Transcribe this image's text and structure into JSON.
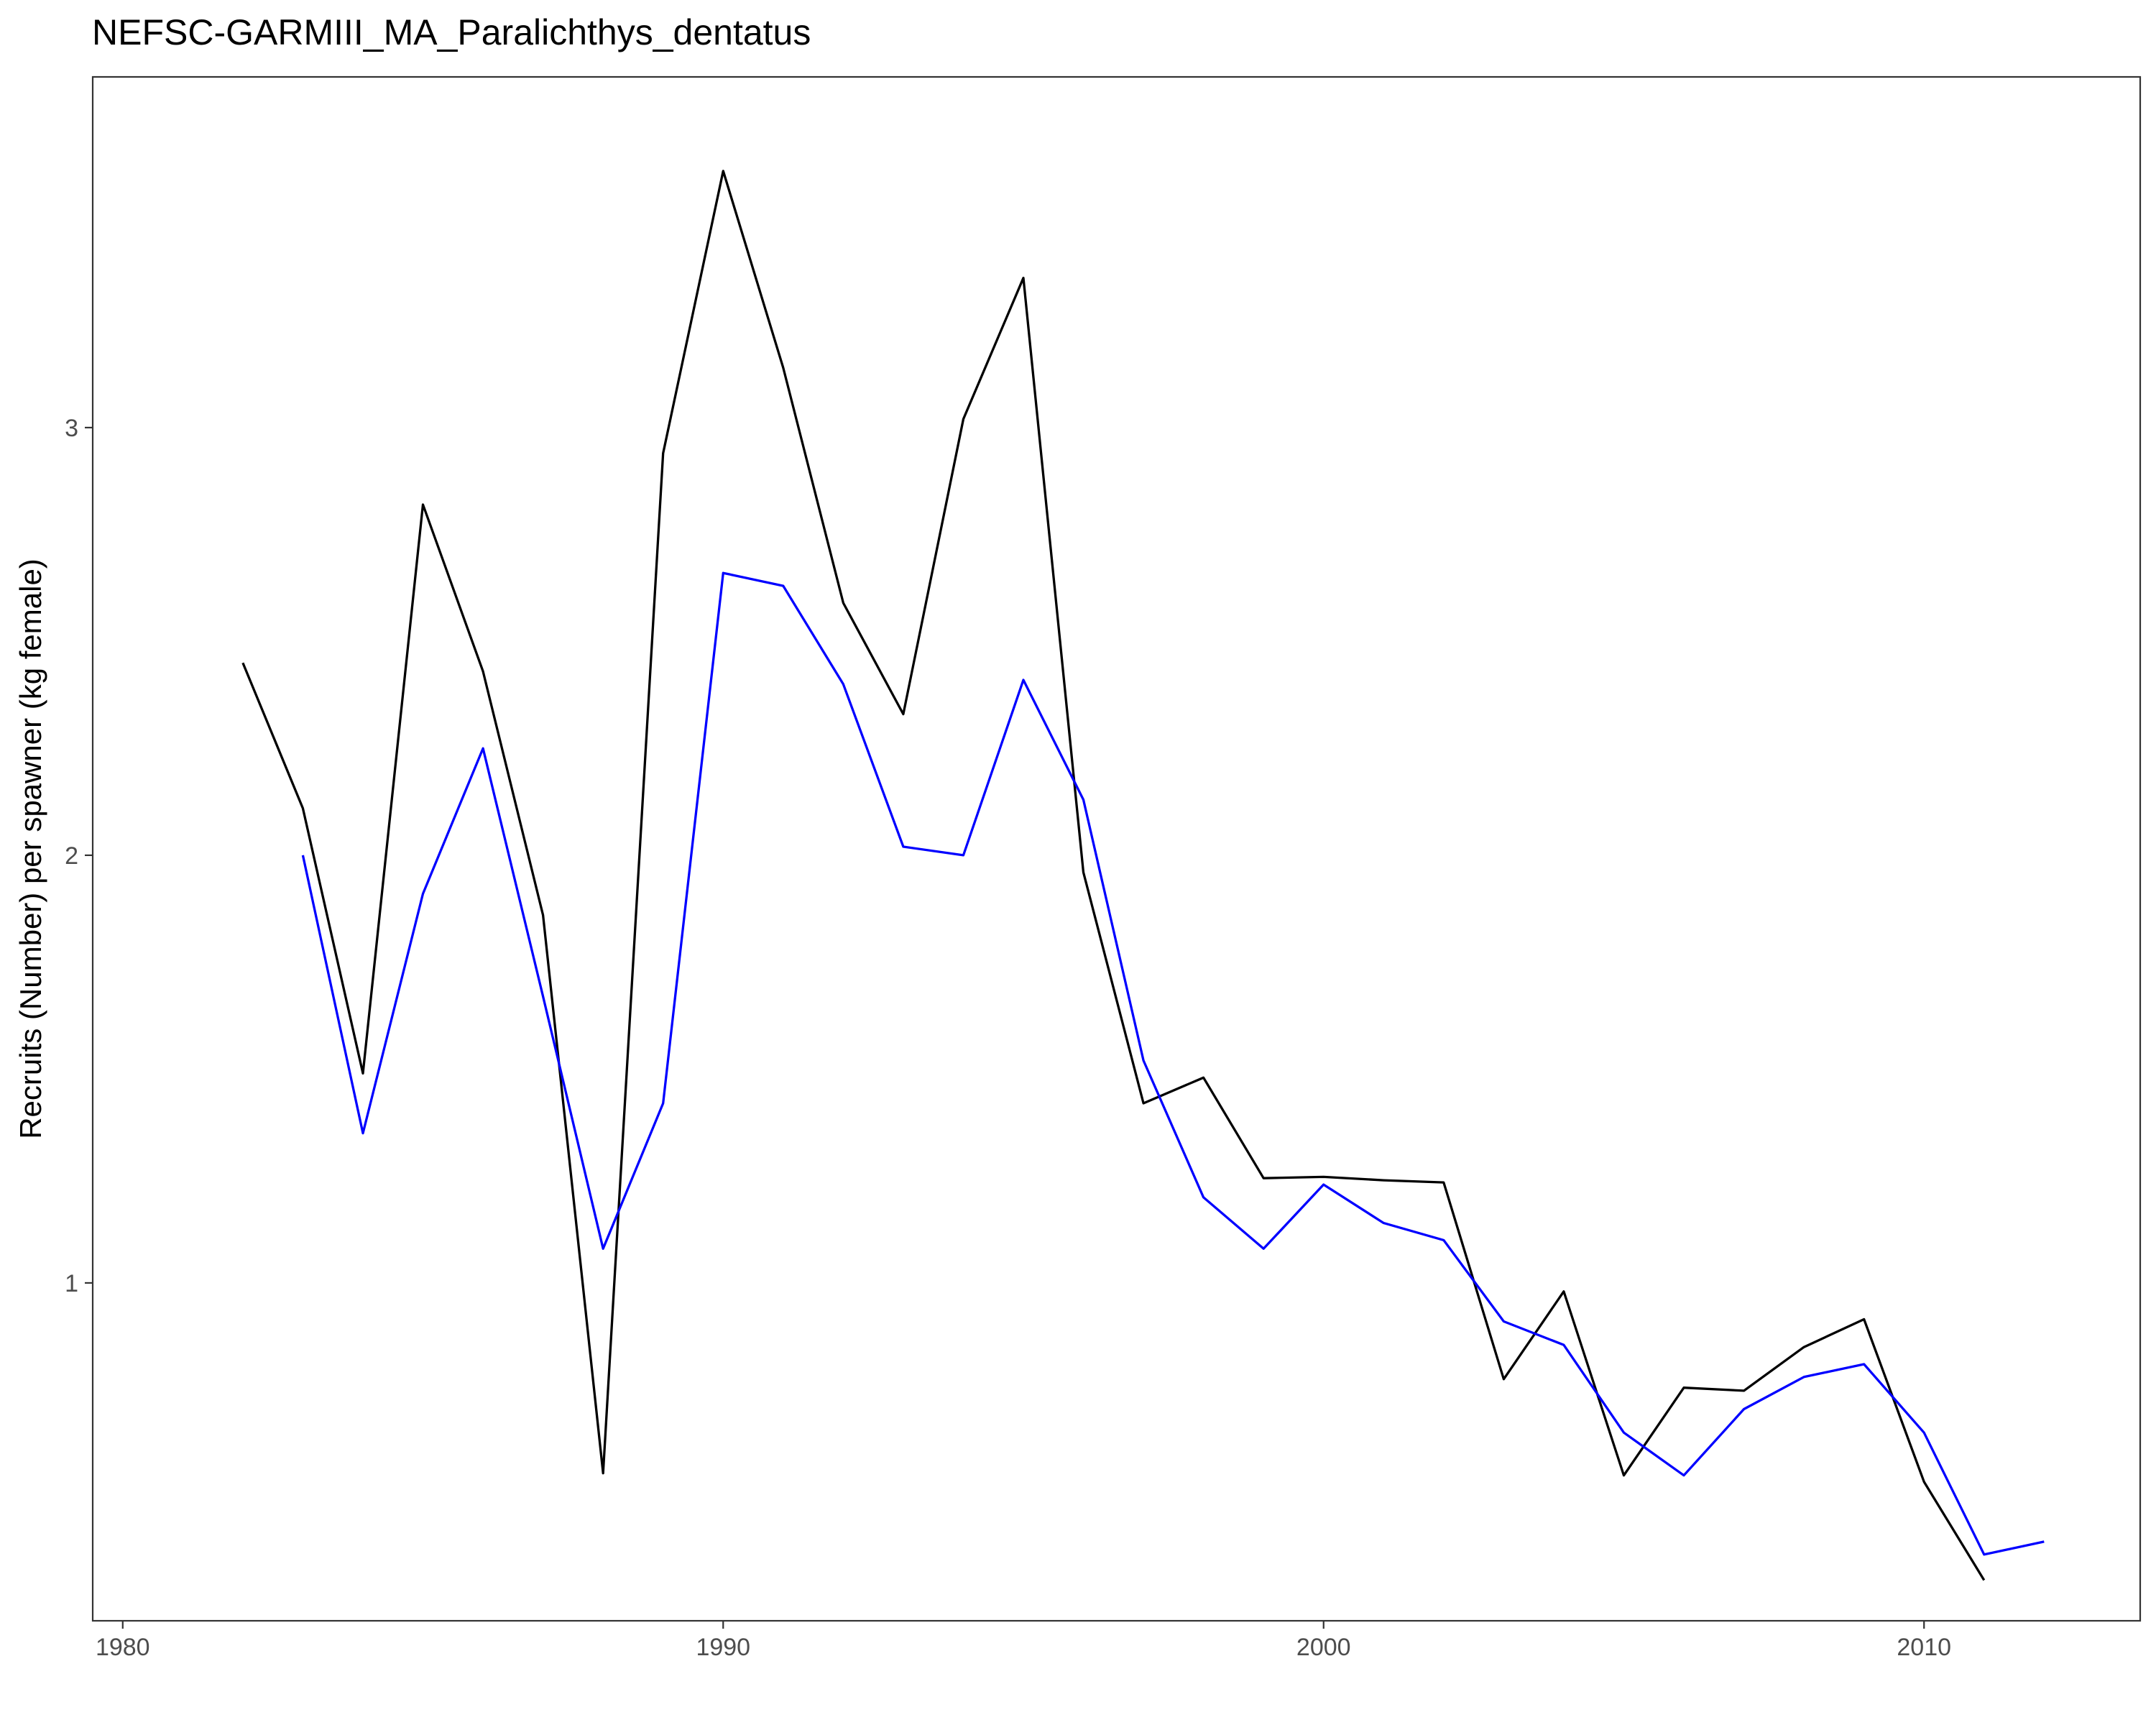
{
  "chart_data": {
    "type": "line",
    "title": "NEFSC-GARMIII_MA_Paralichthys_dentatus",
    "xlabel": "",
    "ylabel": "Recruits (Number) per spawner (kg female)",
    "xlim": [
      1979.5,
      2013.6
    ],
    "ylim": [
      0.21,
      3.82
    ],
    "x_ticks": [
      1980,
      1990,
      2000,
      2010
    ],
    "y_ticks": [
      1,
      2,
      3
    ],
    "grid": false,
    "legend": "none",
    "series": [
      {
        "color": "#000000",
        "x": [
          1982,
          1983,
          1984,
          1985,
          1986,
          1987,
          1988,
          1989,
          1990,
          1991,
          1992,
          1993,
          1994,
          1995,
          1996,
          1997,
          1998,
          1999,
          2000,
          2001,
          2002,
          2003,
          2004,
          2005,
          2006,
          2007,
          2008,
          2009,
          2010,
          2011
        ],
        "values": [
          2.45,
          2.11,
          1.49,
          2.82,
          2.43,
          1.86,
          0.555,
          2.94,
          3.6,
          3.14,
          2.59,
          2.33,
          3.02,
          3.35,
          1.96,
          1.42,
          1.48,
          1.245,
          1.248,
          1.24,
          1.235,
          0.775,
          0.98,
          0.55,
          0.755,
          0.748,
          0.85,
          0.915,
          0.535,
          0.305
        ]
      },
      {
        "color": "#0000ff",
        "x": [
          1983,
          1984,
          1985,
          1986,
          1987,
          1988,
          1989,
          1990,
          1991,
          1992,
          1993,
          1994,
          1995,
          1996,
          1997,
          1998,
          1999,
          2000,
          2001,
          2002,
          2003,
          2004,
          2005,
          2006,
          2007,
          2008,
          2009,
          2010,
          2011,
          2012
        ],
        "values": [
          2.0,
          1.35,
          1.91,
          2.25,
          1.67,
          1.08,
          1.42,
          2.66,
          2.63,
          2.4,
          2.02,
          2.0,
          2.41,
          2.13,
          1.52,
          1.2,
          1.08,
          1.23,
          1.14,
          1.1,
          0.91,
          0.855,
          0.65,
          0.55,
          0.705,
          0.78,
          0.81,
          0.65,
          0.365,
          0.395
        ]
      }
    ]
  }
}
